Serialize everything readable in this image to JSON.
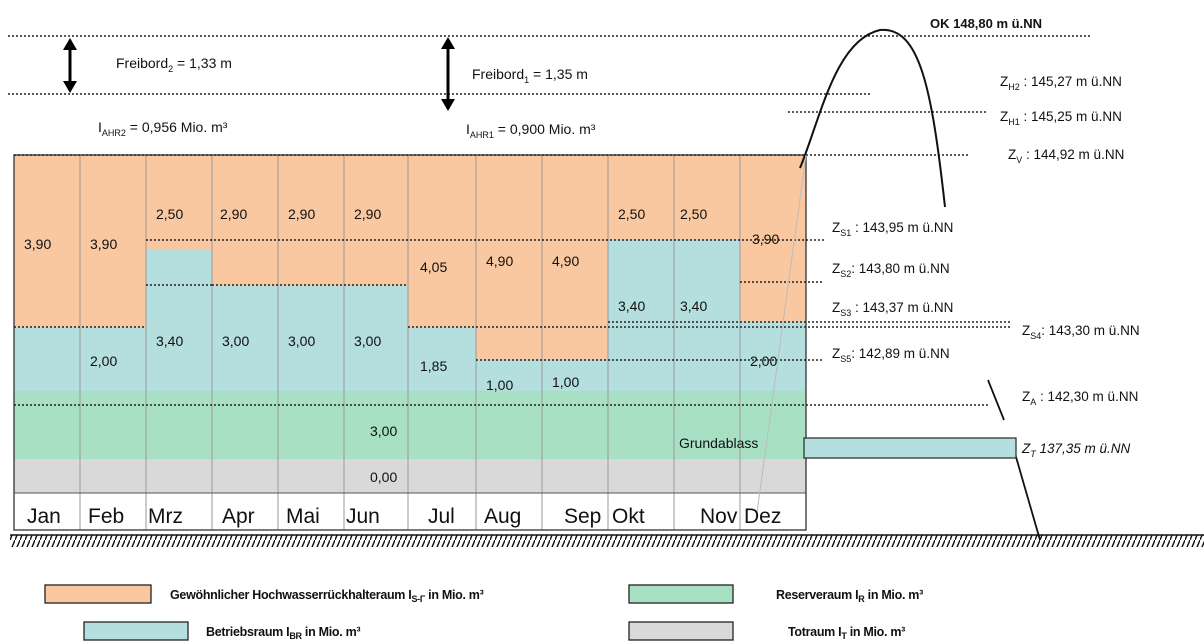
{
  "colors": {
    "hochwasser": "#F9C8A0",
    "betrieb": "#B5DEDF",
    "reserve": "#A8E0C4",
    "tot": "#D9D9D9"
  },
  "top": {
    "ok_label": "OK 148,80 m ü.NN",
    "freibord2": {
      "main": "Freibord",
      "sub": "2",
      "rest": " = 1,33 m"
    },
    "freibord1": {
      "main": "Freibord",
      "sub": "1",
      "rest": " = 1,35 m"
    },
    "iahr2": {
      "main": "I",
      "sub": "AHR2",
      "rest": " = 0,956 Mio.  m³"
    },
    "iahr1": {
      "main": "I",
      "sub": "AHR1",
      "rest": " = 0,900 Mio.  m³"
    }
  },
  "levels": [
    {
      "main": "Z",
      "sub": "H2",
      "rest": " :  145,27 m ü.NN"
    },
    {
      "main": "Z",
      "sub": "H1",
      "rest": " :  145,25 m ü.NN"
    },
    {
      "main": "Z",
      "sub": "V",
      "rest": " :  144,92 m ü.NN"
    },
    {
      "main": "Z",
      "sub": "S1",
      "rest": " :  143,95 m ü.NN"
    },
    {
      "main": "Z",
      "sub": "S2",
      "rest": ":  143,80 m ü.NN"
    },
    {
      "main": "Z",
      "sub": "S3",
      "rest": " :  143,37 m ü.NN"
    },
    {
      "main": "Z",
      "sub": "S4",
      "rest": ":  143,30 m ü.NN"
    },
    {
      "main": "Z",
      "sub": "S5",
      "rest": ":  142,89 m ü.NN"
    },
    {
      "main": "Z",
      "sub": "A",
      "rest": " :  142,30 m ü.NN"
    },
    {
      "main": "Z",
      "sub": "T",
      "rest": "   137,35 m ü.NN"
    }
  ],
  "values": {
    "jan_hw": "3,90",
    "feb_hw": "3,90",
    "mrz_hw": "2,50",
    "apr_hw": "2,90",
    "mai_hw": "2,90",
    "jun_hw": "2,90",
    "jul_hw": "4,05",
    "aug_hw": "4,90",
    "sep_hw": "4,90",
    "okt_hw": "2,50",
    "nov_hw": "2,50",
    "dez_hw": "3,90",
    "feb_br": "2,00",
    "mrz_br": "3,40",
    "apr_br": "3,00",
    "mai_br": "3,00",
    "jun_br": "3,00",
    "jul_br": "1,85",
    "aug_br": "1,00",
    "sep_br": "1,00",
    "okt_br": "3,40",
    "nov_br": "3,40",
    "dez_br": "2,00",
    "reserve": "3,00",
    "tot": "0,00"
  },
  "grundablass": "Grundablass",
  "months": [
    "Jan",
    "Feb",
    "Mrz",
    "Apr",
    "Mai",
    "Jun",
    "Jul",
    "Aug",
    "Sep",
    "Okt",
    "Nov",
    "Dez"
  ],
  "legend": {
    "hochwasser": {
      "main": "Gewöhnlicher Hochwasserrückhalteraum I",
      "sub": "S-Γ",
      "rest": " in Mio.  m³"
    },
    "betrieb": {
      "main": "Betriebsraum I",
      "sub": "BR",
      "rest": " in Mio.  m³"
    },
    "reserve": {
      "main": "Reserveraum I",
      "sub": "R",
      "rest": " in Mio.  m³"
    },
    "tot": {
      "main": "Totraum I",
      "sub": "T",
      "rest": " in Mio.  m³"
    }
  }
}
